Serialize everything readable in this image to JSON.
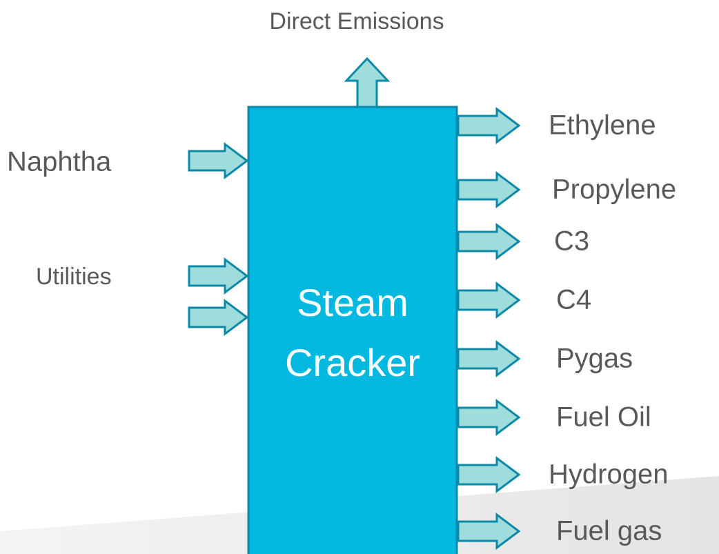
{
  "emissions": "Direct Emissions",
  "inputs": [
    "Naphtha",
    "Utilities"
  ],
  "process": [
    "Steam",
    "Cracker"
  ],
  "outputs": [
    "Ethylene",
    "Propylene",
    "C3",
    "C4",
    "Pygas",
    "Fuel Oil",
    "Hydrogen",
    "Fuel gas"
  ]
}
